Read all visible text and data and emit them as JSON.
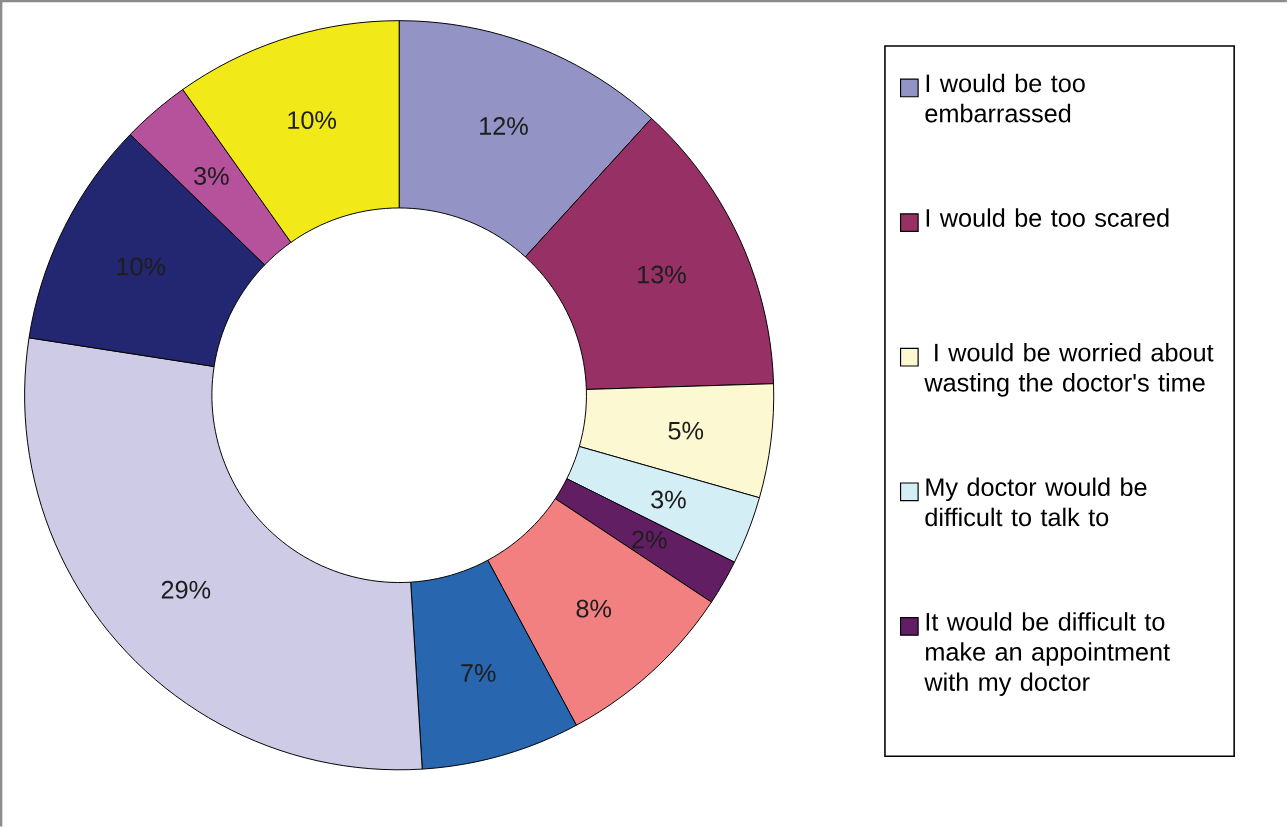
{
  "chart_data": {
    "type": "donut",
    "categories": [
      "I would be too embarrassed",
      "I would be too scared",
      " I would be worried about wasting the doctor's time",
      "My doctor would be difficult to talk to",
      "It would be difficult to make an appointment with my doctor",
      null,
      null,
      null,
      null,
      null,
      null
    ],
    "values": [
      12,
      13,
      5,
      3,
      2,
      8,
      7,
      29,
      10,
      3,
      10
    ],
    "value_labels": [
      "12%",
      "13%",
      "5%",
      "3%",
      "2%",
      "8%",
      "7%",
      "29%",
      "10%",
      "3%",
      "10%"
    ],
    "colors": [
      "#9393c6",
      "#963065",
      "#fbf8d2",
      "#d3eef5",
      "#611e63",
      "#f28080",
      "#2866b0",
      "#cdcbe6",
      "#232670",
      "#b6519b",
      "#f1ea18"
    ],
    "legend": "right"
  }
}
